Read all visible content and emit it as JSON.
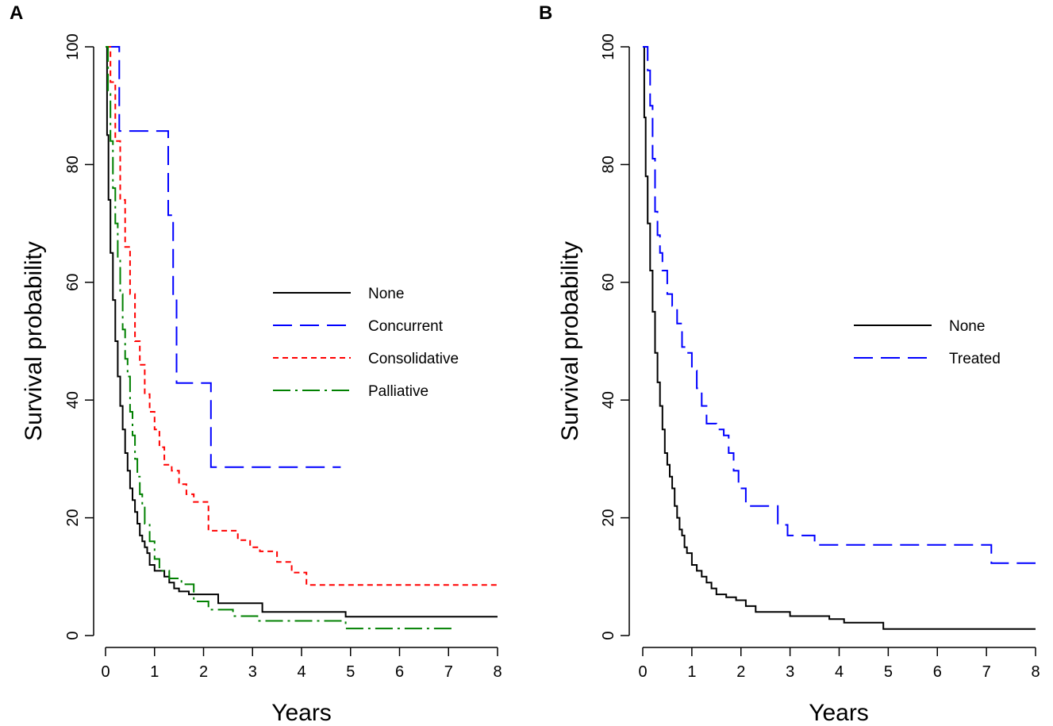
{
  "figure": {
    "panels": [
      "A",
      "B"
    ]
  },
  "colors": {
    "none": "#000000",
    "concurrent": "#0000ff",
    "consolidative": "#ff0000",
    "palliative": "#008000",
    "treated": "#0000ff"
  },
  "chart_data": [
    {
      "panel_label": "A",
      "type": "line",
      "step": true,
      "xlabel": "Years",
      "ylabel": "Survival probability",
      "xlim": [
        0,
        8
      ],
      "ylim": [
        0,
        100
      ],
      "xticks": [
        0,
        1,
        2,
        3,
        4,
        5,
        6,
        7,
        8
      ],
      "yticks": [
        0,
        20,
        40,
        60,
        80,
        100
      ],
      "xtick_labels": [
        "0",
        "1",
        "2",
        "3",
        "4",
        "5",
        "6",
        "7",
        "8"
      ],
      "ytick_labels": [
        "0",
        "20",
        "40",
        "60",
        "80",
        "100"
      ],
      "legend_position": "right-middle",
      "series": [
        {
          "name": "None",
          "color": "#000000",
          "style": "solid",
          "x": [
            0,
            0.03,
            0.06,
            0.1,
            0.15,
            0.2,
            0.25,
            0.3,
            0.35,
            0.4,
            0.45,
            0.5,
            0.55,
            0.6,
            0.65,
            0.7,
            0.75,
            0.8,
            0.85,
            0.9,
            1.0,
            1.1,
            1.2,
            1.3,
            1.4,
            1.5,
            1.7,
            2.0,
            2.3,
            2.8,
            3.2,
            3.5,
            4.0,
            4.9,
            8.0
          ],
          "y": [
            100,
            85,
            74,
            65,
            57,
            50,
            44,
            39,
            35,
            31,
            28,
            25,
            23,
            21,
            19,
            17,
            16,
            15,
            14,
            12,
            11,
            11,
            10,
            9,
            8,
            7.5,
            7,
            7,
            5.5,
            5.5,
            4,
            4,
            4,
            3.2,
            3.2
          ]
        },
        {
          "name": "Concurrent",
          "color": "#0000ff",
          "style": "longdash",
          "x": [
            0,
            0.28,
            1.28,
            1.38,
            1.45,
            2.15,
            4.8
          ],
          "y": [
            100,
            85.7,
            71.4,
            57.1,
            42.9,
            28.6,
            28.6
          ]
        },
        {
          "name": "Consolidative",
          "color": "#ff0000",
          "style": "shortdash",
          "x": [
            0,
            0.1,
            0.2,
            0.3,
            0.4,
            0.5,
            0.6,
            0.7,
            0.8,
            0.9,
            1.0,
            1.1,
            1.2,
            1.35,
            1.5,
            1.65,
            1.8,
            2.1,
            2.7,
            2.95,
            3.15,
            3.5,
            3.8,
            4.1,
            8.0
          ],
          "y": [
            100,
            94,
            84,
            74,
            66,
            58,
            50,
            46,
            41,
            38,
            35,
            32,
            29,
            28,
            25.7,
            24,
            22.7,
            17.8,
            16.2,
            15,
            14.3,
            12.5,
            10.7,
            8.6,
            8.6
          ]
        },
        {
          "name": "Palliative",
          "color": "#008000",
          "style": "dashdot",
          "x": [
            0,
            0.05,
            0.1,
            0.15,
            0.2,
            0.25,
            0.3,
            0.35,
            0.4,
            0.45,
            0.5,
            0.55,
            0.6,
            0.65,
            0.7,
            0.75,
            0.8,
            0.9,
            1.0,
            1.1,
            1.3,
            1.55,
            1.8,
            2.1,
            2.6,
            3.1,
            4.9,
            7.1
          ],
          "y": [
            100,
            92,
            84,
            76,
            70,
            64,
            58,
            52,
            47,
            44,
            38,
            34,
            30,
            27,
            24,
            22,
            19,
            16,
            13,
            11,
            9.7,
            8.7,
            5.8,
            4.4,
            3.3,
            2.5,
            1.2,
            1.2
          ]
        }
      ]
    },
    {
      "panel_label": "B",
      "type": "line",
      "step": true,
      "xlabel": "Years",
      "ylabel": "Survival probability",
      "xlim": [
        0,
        8
      ],
      "ylim": [
        0,
        100
      ],
      "xticks": [
        0,
        1,
        2,
        3,
        4,
        5,
        6,
        7,
        8
      ],
      "yticks": [
        0,
        20,
        40,
        60,
        80,
        100
      ],
      "xtick_labels": [
        "0",
        "1",
        "2",
        "3",
        "4",
        "5",
        "6",
        "7",
        "8"
      ],
      "ytick_labels": [
        "0",
        "20",
        "40",
        "60",
        "80",
        "100"
      ],
      "legend_position": "right-middle",
      "series": [
        {
          "name": "None",
          "color": "#000000",
          "style": "solid",
          "x": [
            0,
            0.03,
            0.06,
            0.1,
            0.15,
            0.2,
            0.25,
            0.3,
            0.35,
            0.4,
            0.45,
            0.5,
            0.55,
            0.6,
            0.65,
            0.7,
            0.75,
            0.8,
            0.85,
            0.9,
            1.0,
            1.1,
            1.2,
            1.3,
            1.4,
            1.5,
            1.7,
            1.9,
            2.1,
            2.3,
            2.8,
            3.0,
            3.5,
            3.8,
            4.1,
            4.9,
            8.0
          ],
          "y": [
            100,
            88,
            78,
            70,
            62,
            55,
            48,
            43,
            39,
            35,
            31,
            29,
            27,
            25,
            22,
            20,
            18,
            17,
            15,
            14,
            12,
            11,
            10,
            9,
            8,
            7,
            6.5,
            6,
            5,
            4,
            4,
            3.3,
            3.3,
            2.8,
            2.2,
            1.1,
            1.1
          ]
        },
        {
          "name": "Treated",
          "color": "#0000ff",
          "style": "longdash",
          "x": [
            0,
            0.1,
            0.15,
            0.2,
            0.25,
            0.3,
            0.35,
            0.4,
            0.5,
            0.6,
            0.7,
            0.8,
            0.9,
            1.0,
            1.1,
            1.2,
            1.3,
            1.5,
            1.65,
            1.75,
            1.85,
            1.95,
            2.1,
            2.5,
            2.75,
            2.95,
            3.15,
            3.5,
            7.1,
            8.0
          ],
          "y": [
            100,
            96,
            90,
            81,
            72,
            68,
            65,
            62,
            58,
            56,
            53,
            49,
            48,
            45,
            42,
            39,
            36,
            35,
            34,
            31,
            28,
            25,
            22,
            22,
            18.8,
            17,
            17,
            15.4,
            12.3,
            12.3
          ]
        }
      ]
    }
  ]
}
